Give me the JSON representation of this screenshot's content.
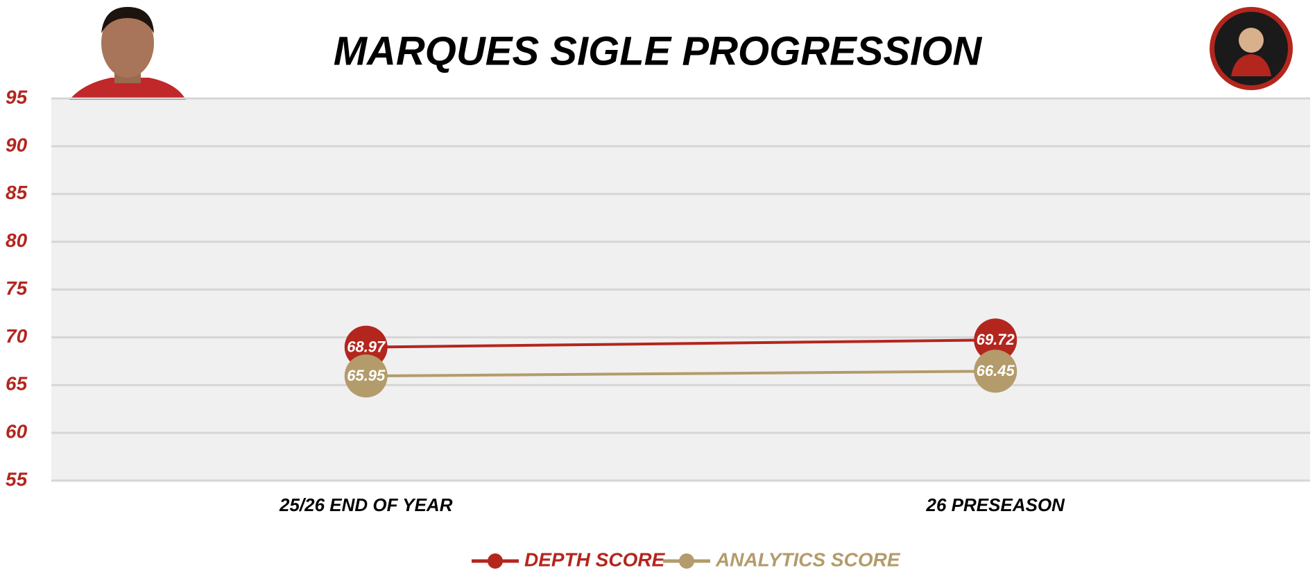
{
  "chart_data": {
    "type": "line",
    "title": "MARQUES SIGLE PROGRESSION",
    "categories": [
      "25/26 END OF YEAR",
      "26 PRESEASON"
    ],
    "series": [
      {
        "name": "DEPTH SCORE",
        "color": "#b3261e",
        "values": [
          68.97,
          69.72
        ]
      },
      {
        "name": "ANALYTICS SCORE",
        "color": "#b39b6b",
        "values": [
          65.95,
          66.45
        ]
      }
    ],
    "ylim": [
      55,
      95
    ],
    "yticks": [
      55,
      60,
      65,
      70,
      75,
      80,
      85,
      90,
      95
    ],
    "grid": true
  }
}
